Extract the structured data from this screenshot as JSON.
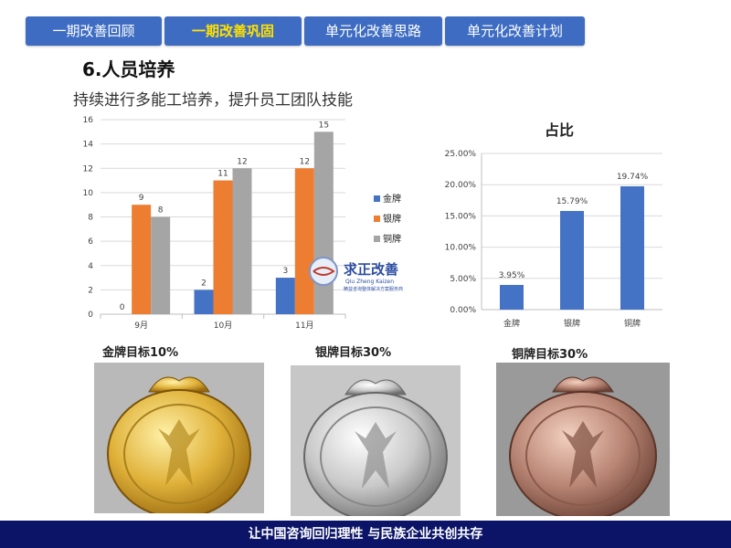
{
  "tabs": [
    {
      "label": "一期改善回顾",
      "active": false
    },
    {
      "label": "一期改善巩固",
      "active": true
    },
    {
      "label": "单元化改善思路",
      "active": false
    },
    {
      "label": "单元化改善计划",
      "active": false
    }
  ],
  "section_title": "6.人员培养",
  "subtitle": "持续进行多能工培养，提升员工团队技能",
  "colors": {
    "tab_bg": "#3d6cc2",
    "tab_active_text": "#ffe000",
    "gold": "#4472c4",
    "silver": "#ed7d31",
    "bronze": "#a5a5a5",
    "footer": "#0b1467"
  },
  "chart_data": [
    {
      "type": "bar",
      "categories": [
        "9月",
        "10月",
        "11月"
      ],
      "series": [
        {
          "name": "金牌",
          "values": [
            0,
            2,
            3
          ]
        },
        {
          "name": "银牌",
          "values": [
            9,
            11,
            12
          ]
        },
        {
          "name": "铜牌",
          "values": [
            8,
            12,
            15
          ]
        }
      ],
      "ylim": [
        0,
        16
      ],
      "yticks": [
        "0",
        "2",
        "4",
        "6",
        "8",
        "10",
        "12",
        "14",
        "16"
      ],
      "legend_position": "right",
      "grid": true
    },
    {
      "type": "bar",
      "title": "占比",
      "categories": [
        "金牌",
        "银牌",
        "铜牌"
      ],
      "values": [
        3.95,
        15.79,
        19.74
      ],
      "value_labels": [
        "3.95%",
        "15.79%",
        "19.74%"
      ],
      "ylim": [
        0,
        25
      ],
      "yticks": [
        "0.00%",
        "5.00%",
        "10.00%",
        "15.00%",
        "20.00%",
        "25.00%"
      ],
      "grid": true
    }
  ],
  "medals": [
    {
      "label": "金牌目标10%",
      "icon": "gold-medal-icon"
    },
    {
      "label": "银牌目标30%",
      "icon": "silver-medal-icon"
    },
    {
      "label": "铜牌目标30%",
      "icon": "bronze-medal-icon"
    }
  ],
  "watermark": {
    "cn": "求正改善",
    "en": "Qiu Zheng Kaizen",
    "tagline": "精益咨询整体解决方案服务商"
  },
  "footer": "让中国咨询回归理性  与民族企业共创共存"
}
